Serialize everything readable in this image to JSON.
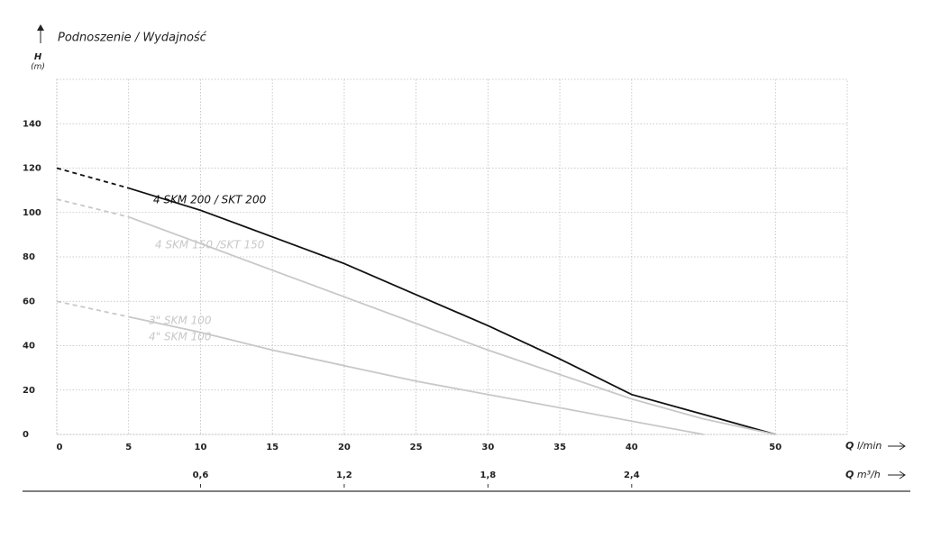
{
  "chart_data": {
    "type": "line",
    "title": "Podnoszenie / Wydajność",
    "y_symbol": "H",
    "y_unit": "(m)",
    "x_symbol": "Q",
    "x_unit": "l/min",
    "x2_symbol": "Q",
    "x2_unit": "m³/h",
    "xlim": [
      0,
      55
    ],
    "xticks": [
      0,
      5,
      10,
      15,
      20,
      25,
      30,
      35,
      40,
      50
    ],
    "x2lim": [
      0,
      3.3
    ],
    "x2ticks": [
      {
        "value": 0.6,
        "label": "0,6"
      },
      {
        "value": 1.2,
        "label": "1,2"
      },
      {
        "value": 1.8,
        "label": "1,8"
      },
      {
        "value": 2.4,
        "label": "2,4"
      }
    ],
    "ylim": [
      0,
      160
    ],
    "yticks": [
      0,
      20,
      40,
      60,
      80,
      100,
      120,
      140
    ],
    "grid": true,
    "series": [
      {
        "name": "4 SKM 200 / SKT 200",
        "color": "#111111",
        "dashed_to": 5,
        "x": [
          0,
          5,
          10,
          15,
          20,
          25,
          30,
          35,
          40,
          45,
          50
        ],
        "values": [
          120,
          111,
          101,
          89,
          77,
          63,
          49,
          34,
          18,
          9,
          0
        ]
      },
      {
        "name": "4 SKM 150 /SKT 150",
        "color": "#c8c8c8",
        "dashed_to": 5,
        "x": [
          0,
          5,
          10,
          15,
          20,
          25,
          30,
          35,
          40,
          45,
          50
        ],
        "values": [
          106,
          98,
          86,
          74,
          62,
          50,
          38,
          27,
          16,
          7,
          0
        ]
      },
      {
        "name": "3\" SKM 100",
        "color": "#c8c8c8",
        "dashed_to": 5,
        "x": [
          0,
          5,
          10,
          15,
          20,
          25,
          30,
          35,
          40,
          45
        ],
        "values": [
          60,
          53,
          46,
          38,
          31,
          24,
          18,
          12,
          6,
          0
        ]
      }
    ],
    "annotations": [
      "4\" SKM 100"
    ]
  }
}
